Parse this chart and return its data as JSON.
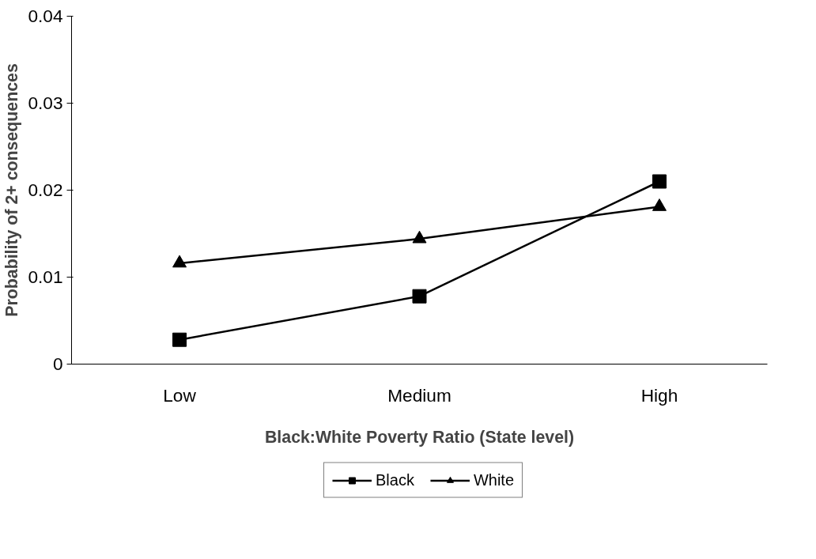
{
  "chart_data": {
    "type": "line",
    "xlabel": "Black:White Poverty Ratio (State level)",
    "ylabel": "Probability of 2+ consequences",
    "categories": [
      "Low",
      "Medium",
      "High"
    ],
    "series": [
      {
        "name": "Black",
        "color": "#000000",
        "marker": "square",
        "values": [
          0.0028,
          0.0078,
          0.021
        ]
      },
      {
        "name": "White",
        "color": "#000000",
        "marker": "triangle",
        "values": [
          0.0116,
          0.0144,
          0.0181
        ]
      }
    ],
    "ylim": [
      0,
      0.04
    ],
    "yticks": [
      0,
      0.01,
      0.02,
      0.03,
      0.04
    ],
    "grid": false,
    "legend": "bottom",
    "line_style": "solid"
  }
}
